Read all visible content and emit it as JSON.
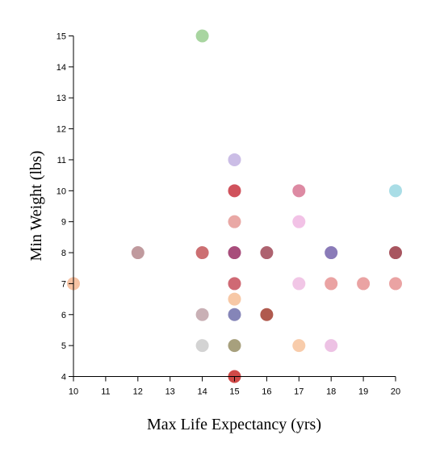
{
  "chart_data": {
    "type": "scatter",
    "title": "",
    "xlabel": "Max Life Expectancy (yrs)",
    "ylabel": "Min Weight (lbs)",
    "xlim": [
      10,
      20
    ],
    "ylim": [
      4,
      15
    ],
    "xticks": [
      10,
      11,
      12,
      13,
      14,
      15,
      16,
      17,
      18,
      19,
      20
    ],
    "yticks": [
      4,
      5,
      6,
      7,
      8,
      9,
      10,
      11,
      12,
      13,
      14,
      15
    ],
    "grid": false,
    "legend": "none",
    "points": [
      {
        "x": 14,
        "y": 15,
        "color": "#a8d5a0"
      },
      {
        "x": 15,
        "y": 11,
        "color": "#cbbde6"
      },
      {
        "x": 15,
        "y": 10,
        "color": "#d0525c"
      },
      {
        "x": 17,
        "y": 10,
        "color": "#dd8aa3"
      },
      {
        "x": 20,
        "y": 10,
        "color": "#a9dde6"
      },
      {
        "x": 15,
        "y": 9,
        "color": "#e9a8a5"
      },
      {
        "x": 17,
        "y": 9,
        "color": "#f2c2e6"
      },
      {
        "x": 12,
        "y": 8,
        "color": "#c09a9e"
      },
      {
        "x": 14,
        "y": 8,
        "color": "#cc6f72"
      },
      {
        "x": 15,
        "y": 8,
        "color": "#a84d7b"
      },
      {
        "x": 16,
        "y": 8,
        "color": "#ae6370"
      },
      {
        "x": 18,
        "y": 8,
        "color": "#8a7bb8"
      },
      {
        "x": 20,
        "y": 8,
        "color": "#a8555f"
      },
      {
        "x": 10,
        "y": 7,
        "color": "#f7c3a4"
      },
      {
        "x": 15,
        "y": 7,
        "color": "#cf6974"
      },
      {
        "x": 17,
        "y": 7,
        "color": "#f1c6e6"
      },
      {
        "x": 18,
        "y": 7,
        "color": "#eaa3a3"
      },
      {
        "x": 19,
        "y": 7,
        "color": "#eaa3a3"
      },
      {
        "x": 20,
        "y": 7,
        "color": "#eaa3a3"
      },
      {
        "x": 15,
        "y": 6.5,
        "color": "#f7c8a6"
      },
      {
        "x": 14,
        "y": 6,
        "color": "#c9b0b5"
      },
      {
        "x": 15,
        "y": 6,
        "color": "#8585b8"
      },
      {
        "x": 16,
        "y": 6,
        "color": "#b05a4e"
      },
      {
        "x": 14,
        "y": 5,
        "color": "#d3d3d3"
      },
      {
        "x": 15,
        "y": 5,
        "color": "#a7a07d"
      },
      {
        "x": 17,
        "y": 5,
        "color": "#f8ccab"
      },
      {
        "x": 18,
        "y": 5,
        "color": "#edc2e4"
      },
      {
        "x": 15,
        "y": 4,
        "color": "#d04a48"
      }
    ]
  }
}
